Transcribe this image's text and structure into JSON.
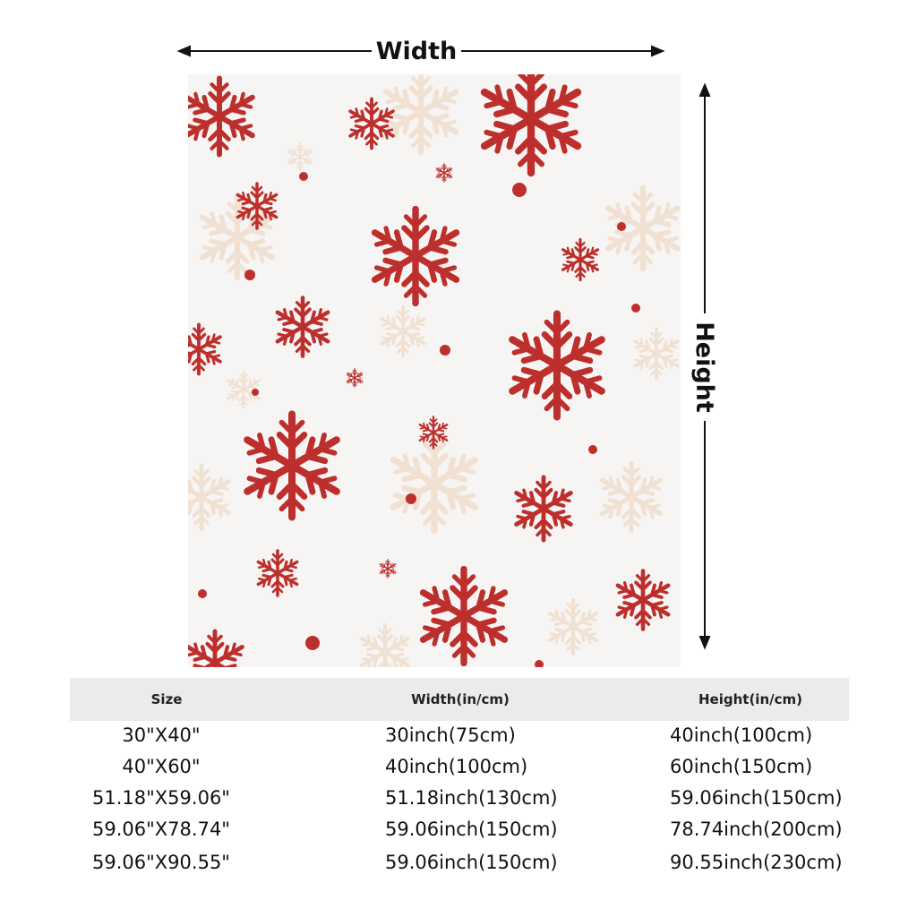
{
  "dimensions": {
    "width_label": "Width",
    "height_label": "Height"
  },
  "table": {
    "headers": [
      "Size",
      "Width(in/cm)",
      "Height(in/cm)"
    ],
    "rows": [
      [
        "30\"X40\"",
        "30inch(75cm)",
        "40inch(100cm)"
      ],
      [
        "40\"X60\"",
        "40inch(100cm)",
        "60inch(150cm)"
      ],
      [
        "51.18\"X59.06\"",
        "51.18inch(130cm)",
        "59.06inch(150cm)"
      ],
      [
        "59.06\"X78.74\"",
        "59.06inch(150cm)",
        "78.74inch(200cm)"
      ],
      [
        "59.06\"X90.55\"",
        "59.06inch(150cm)",
        "90.55inch(230cm)"
      ]
    ]
  }
}
